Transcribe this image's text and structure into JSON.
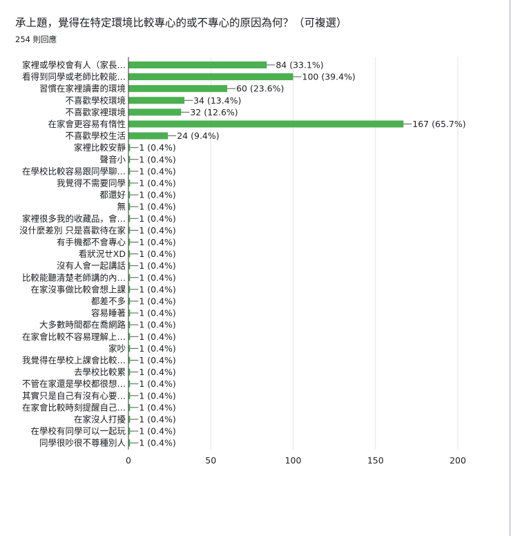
{
  "header": {
    "title": "承上題，覺得在特定環境比較專心的或不專心的原因為何？（可複選）",
    "response_count": "254 則回應"
  },
  "colors": {
    "bar": "#4caf50",
    "grid": "#e6e6e6",
    "axis": "#333333",
    "text": "#202124"
  },
  "chart_data": {
    "type": "bar",
    "orientation": "horizontal",
    "title": "",
    "xlabel": "",
    "ylabel": "",
    "xlim": [
      0,
      200
    ],
    "x_ticks": [
      0,
      50,
      100,
      150,
      200
    ],
    "grid": true,
    "categories": [
      "家裡或學校會有人（家長…",
      "看得到同學或老師比較能…",
      "習慣在家裡讀書的環境",
      "不喜歡學校環境",
      "不喜歡家裡環境",
      "在家會更容易有惰性",
      "不喜歡學校生活",
      "家裡比較安靜",
      "聲音小",
      "在學校比較容易跟同學聊…",
      "我覺得不需要同學",
      "都還好",
      "無",
      "家裡很多我的收藏品，會…",
      "沒什麼差別 只是喜歡待在家",
      "有手機都不會專心",
      "看狀況ㄝXD",
      "沒有人會一起講話",
      "比較能聽清楚老師講的內…",
      "在家沒事做比較會想上課",
      "都差不多",
      "容易睡著",
      "大多數時間都在喬網路",
      "在家會比較不容易理解上…",
      "家吵",
      "我覺得在學校上課會比較…",
      "去學校比較累",
      "不管在家還是學校都很想…",
      "其實只是自己有沒有心要…",
      "在家會比較時刻提醒自己…",
      "在家沒人打擾",
      "在學校有同學可以一起玩",
      "同學很吵很不尊種別人"
    ],
    "values": [
      84,
      100,
      60,
      34,
      32,
      167,
      24,
      1,
      1,
      1,
      1,
      1,
      1,
      1,
      1,
      1,
      1,
      1,
      1,
      1,
      1,
      1,
      1,
      1,
      1,
      1,
      1,
      1,
      1,
      1,
      1,
      1,
      1
    ],
    "value_labels": [
      "84 (33.1%)",
      "100 (39.4%)",
      "60 (23.6%)",
      "34 (13.4%)",
      "32 (12.6%)",
      "167 (65.7%)",
      "24 (9.4%)",
      "1 (0.4%)",
      "1 (0.4%)",
      "1 (0.4%)",
      "1 (0.4%)",
      "1 (0.4%)",
      "1 (0.4%)",
      "1 (0.4%)",
      "1 (0.4%)",
      "1 (0.4%)",
      "1 (0.4%)",
      "1 (0.4%)",
      "1 (0.4%)",
      "1 (0.4%)",
      "1 (0.4%)",
      "1 (0.4%)",
      "1 (0.4%)",
      "1 (0.4%)",
      "1 (0.4%)",
      "1 (0.4%)",
      "1 (0.4%)",
      "1 (0.4%)",
      "1 (0.4%)",
      "1 (0.4%)",
      "1 (0.4%)",
      "1 (0.4%)",
      "1 (0.4%)"
    ]
  }
}
